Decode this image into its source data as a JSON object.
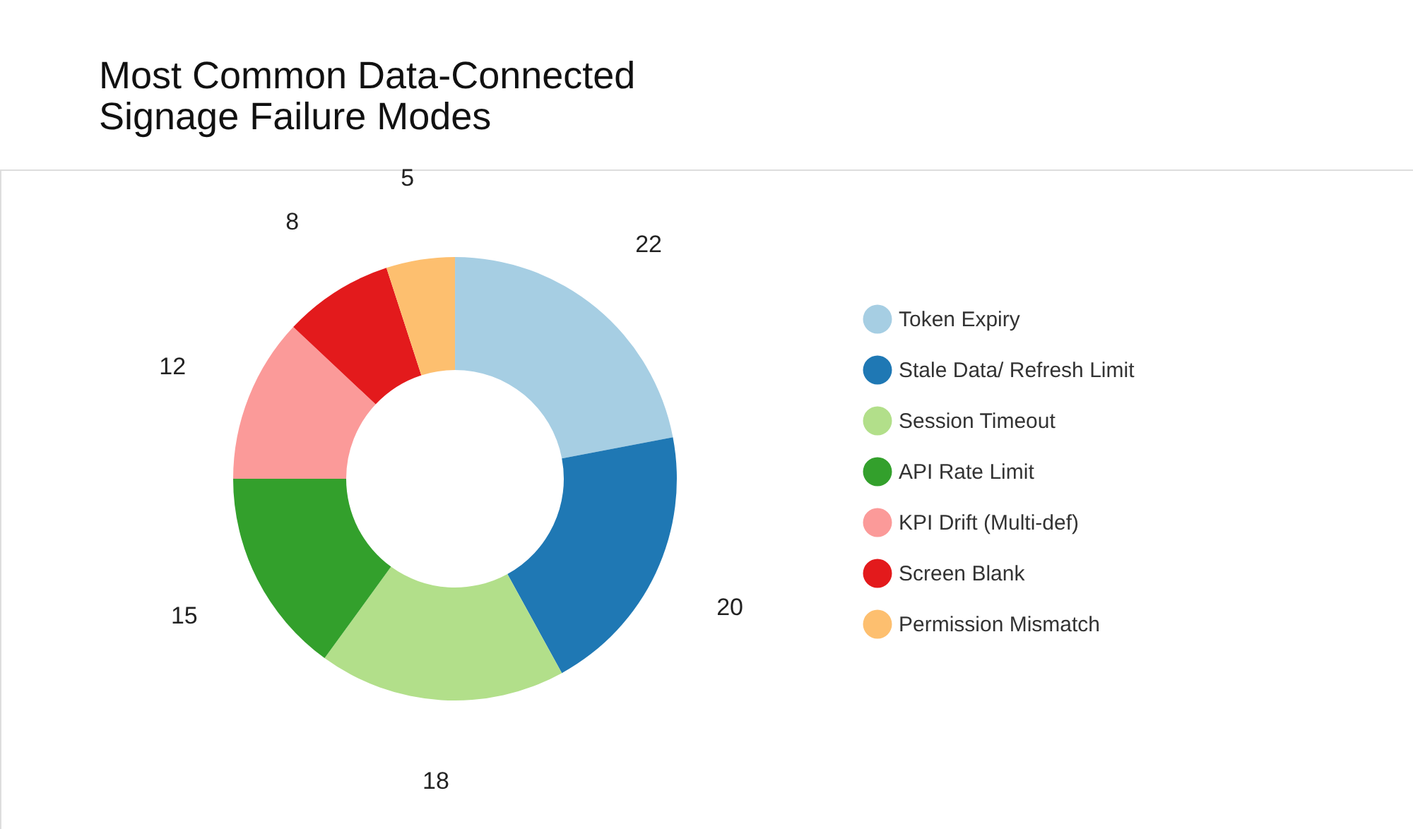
{
  "chart_data": {
    "type": "donut",
    "title": "Most Common Data-Connected Signage Failure Modes",
    "categories": [
      "Token Expiry",
      "Stale Data/ Refresh Limit",
      "Session Timeout",
      "API Rate Limit",
      "KPI Drift (Multi-def)",
      "Screen Blank",
      "Permission Mismatch"
    ],
    "values": [
      22,
      20,
      18,
      15,
      12,
      8,
      5
    ],
    "colors": [
      "#a6cee3",
      "#1f78b4",
      "#b2df8a",
      "#33a02c",
      "#fb9a99",
      "#e31a1c",
      "#fdbf6f"
    ],
    "data_labels": true,
    "legend": "right"
  }
}
